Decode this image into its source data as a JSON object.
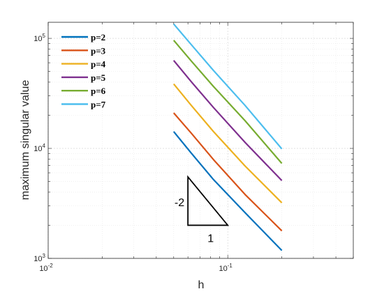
{
  "chart_data": {
    "type": "line",
    "xlabel": "h",
    "ylabel": "maximum singular value",
    "xscale": "log",
    "yscale": "log",
    "xlim": [
      0.01,
      0.5
    ],
    "ylim": [
      1000,
      140000
    ],
    "grid": true,
    "legend_position": "top-left",
    "x_tick_labels": [
      "10^-2",
      "10^-1"
    ],
    "y_tick_labels": [
      "10^3",
      "10^4",
      "10^5"
    ],
    "x": [
      0.05,
      0.0625,
      0.0833,
      0.125,
      0.2
    ],
    "series": [
      {
        "name": "p=2",
        "color": "#0072BD",
        "values": [
          14200,
          9100,
          5200,
          2600,
          1180
        ]
      },
      {
        "name": "p=3",
        "color": "#D95319",
        "values": [
          21000,
          13800,
          7900,
          3800,
          1780
        ]
      },
      {
        "name": "p=4",
        "color": "#EDB120",
        "values": [
          38500,
          24700,
          14200,
          6900,
          3200
        ]
      },
      {
        "name": "p=5",
        "color": "#7E2F8E",
        "values": [
          63000,
          40500,
          23500,
          11300,
          5100
        ]
      },
      {
        "name": "p=6",
        "color": "#77AC30",
        "values": [
          96000,
          62500,
          36500,
          17800,
          7300
        ]
      },
      {
        "name": "p=7",
        "color": "#4DBEEE",
        "values": [
          135000,
          88000,
          51000,
          24500,
          9900
        ]
      }
    ],
    "annotations": {
      "slope_label": "-2",
      "run_label": "1",
      "triangle": {
        "x_left": 0.06,
        "x_right": 0.1,
        "y_bottom": 2000,
        "y_top": 5500
      }
    }
  }
}
